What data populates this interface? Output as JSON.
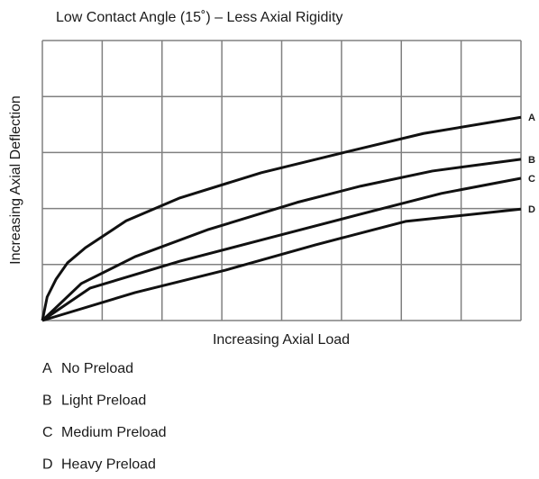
{
  "chart_data": {
    "type": "line",
    "title": "Low Contact Angle (15˚) – Less Axial Rigidity",
    "x_label": "Increasing Axial Load",
    "y_label": "Increasing Axial Deflection",
    "xlim": [
      0,
      8
    ],
    "ylim": [
      0,
      5
    ],
    "xticks": [
      0,
      1,
      2,
      3,
      4,
      5,
      6,
      7,
      8
    ],
    "yticks": [
      0,
      1,
      2,
      3,
      4,
      5
    ],
    "tick_labels": false,
    "grid": true,
    "grid_color": "#808080",
    "series": [
      {
        "name": "A",
        "description": "No Preload",
        "color": "#111111",
        "x": [
          0,
          0.08,
          0.23,
          0.42,
          0.72,
          1.4,
          2.3,
          3.66,
          5.0,
          6.37,
          8
        ],
        "values": [
          0,
          0.42,
          0.74,
          1.03,
          1.3,
          1.78,
          2.19,
          2.64,
          2.99,
          3.34,
          3.63
        ]
      },
      {
        "name": "B",
        "description": "Light Preload",
        "color": "#111111",
        "x": [
          0,
          0.65,
          1.55,
          2.76,
          4.26,
          5.32,
          6.52,
          8
        ],
        "values": [
          0,
          0.66,
          1.14,
          1.62,
          2.11,
          2.4,
          2.67,
          2.88
        ]
      },
      {
        "name": "C",
        "description": "Medium Preload",
        "color": "#111111",
        "x": [
          0,
          0.8,
          2.3,
          3.81,
          5.32,
          6.67,
          8
        ],
        "values": [
          0,
          0.58,
          1.06,
          1.48,
          1.9,
          2.27,
          2.54
        ]
      },
      {
        "name": "D",
        "description": "Heavy Preload",
        "color": "#111111",
        "x": [
          0,
          1.55,
          3.06,
          4.56,
          6.07,
          8
        ],
        "values": [
          0,
          0.5,
          0.9,
          1.35,
          1.77,
          1.99
        ]
      }
    ]
  }
}
